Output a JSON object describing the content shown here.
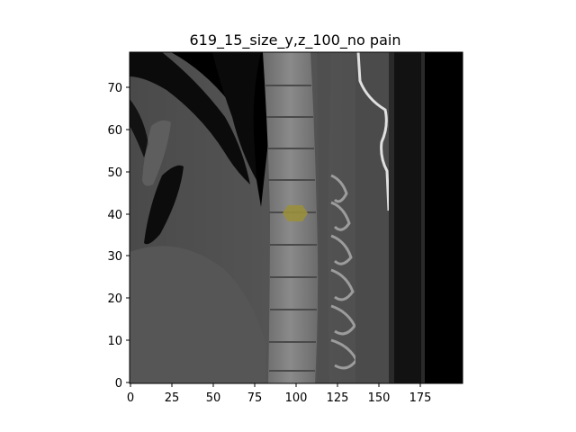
{
  "figure": {
    "title": "619_15_size_y,z_100_no pain"
  },
  "axes": {
    "x_ticks": [
      "0",
      "25",
      "50",
      "75",
      "100",
      "125",
      "150",
      "175"
    ],
    "y_ticks": [
      "0",
      "10",
      "20",
      "30",
      "40",
      "50",
      "60",
      "70"
    ]
  },
  "image": {
    "description_modality": "sagittal CT slice",
    "marker_color": "#9a8f3c"
  }
}
